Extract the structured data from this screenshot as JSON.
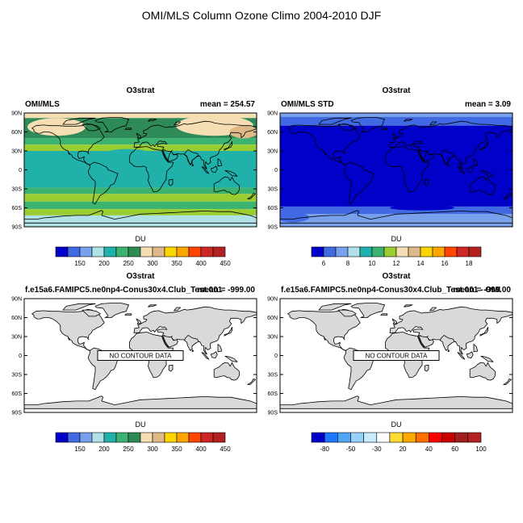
{
  "figure": {
    "title": "OMI/MLS Column Ozone Climo 2004-2010 DJF"
  },
  "land_color": "#d9d9d9",
  "chart_data": [
    {
      "type": "heatmap",
      "variable": "O3strat",
      "left_label": "OMI/MLS",
      "right_label": "mean = 254.57",
      "lat_ticks": [
        "90N",
        "60N",
        "30N",
        "0",
        "30S",
        "60S",
        "90S"
      ],
      "lat_values": [
        90,
        60,
        30,
        0,
        -30,
        -60,
        -90
      ],
      "colorbar": {
        "label": "DU",
        "colors": [
          "#0000c8",
          "#4169e1",
          "#78a0eb",
          "#afe1e6",
          "#20b2aa",
          "#3cb371",
          "#2e8b57",
          "#f5deb3",
          "#deb887",
          "#ffd700",
          "#ffa500",
          "#ff4500",
          "#cd2626",
          "#b22222"
        ],
        "tick_labels": [
          "150",
          "200",
          "250",
          "300",
          "350",
          "400",
          "450"
        ],
        "tick_edges": [
          2,
          4,
          6,
          8,
          10,
          12,
          14
        ]
      },
      "bands": [
        {
          "lat_top": 90,
          "lat_bottom": 82,
          "color": "#f5deb3"
        },
        {
          "lat_top": 82,
          "lat_bottom": 50,
          "color": "#2e8b57"
        },
        {
          "lat_top": 50,
          "lat_bottom": 40,
          "color": "#3cb371"
        },
        {
          "lat_top": 40,
          "lat_bottom": 30,
          "color": "#9acd32"
        },
        {
          "lat_top": 30,
          "lat_bottom": -28,
          "color": "#20b2aa"
        },
        {
          "lat_top": -28,
          "lat_bottom": -38,
          "color": "#3cb371"
        },
        {
          "lat_top": -38,
          "lat_bottom": -50,
          "color": "#9acd32"
        },
        {
          "lat_top": -50,
          "lat_bottom": -62,
          "color": "#3cb371"
        },
        {
          "lat_top": -62,
          "lat_bottom": -72,
          "color": "#9acd32"
        },
        {
          "lat_top": -72,
          "lat_bottom": -90,
          "color": "#afe1e6"
        }
      ],
      "patches": [
        {
          "lon": -130,
          "lat": 68,
          "rx": 45,
          "ry": 14,
          "color": "#f5deb3"
        },
        {
          "lon": 115,
          "lat": 70,
          "rx": 60,
          "ry": 16,
          "color": "#f5deb3"
        },
        {
          "lon": 160,
          "lat": 60,
          "rx": 22,
          "ry": 10,
          "color": "#deb887"
        },
        {
          "lon": -20,
          "lat": 28,
          "rx": 30,
          "ry": 5,
          "color": "#20b2aa"
        }
      ],
      "no_data": false
    },
    {
      "type": "heatmap",
      "variable": "O3strat",
      "left_label": "OMI/MLS STD",
      "right_label": "mean =   3.09",
      "lat_ticks": [
        "90N",
        "60N",
        "30N",
        "0",
        "30S",
        "60S",
        "90S"
      ],
      "lat_values": [
        90,
        60,
        30,
        0,
        -30,
        -60,
        -90
      ],
      "colorbar": {
        "label": "DU",
        "colors": [
          "#0000c8",
          "#4169e1",
          "#78a0eb",
          "#afe1e6",
          "#20b2aa",
          "#3cb371",
          "#9acd32",
          "#f5deb3",
          "#deb887",
          "#ffd700",
          "#ffa500",
          "#ff4500",
          "#cd2626",
          "#b22222"
        ],
        "tick_labels": [
          "6",
          "8",
          "10",
          "12",
          "14",
          "16",
          "18"
        ],
        "tick_edges": [
          1,
          3,
          5,
          7,
          9,
          11,
          13
        ]
      },
      "bands": [
        {
          "lat_top": 90,
          "lat_bottom": 84,
          "color": "#78a0eb"
        },
        {
          "lat_top": 84,
          "lat_bottom": 70,
          "color": "#4169e1"
        },
        {
          "lat_top": 70,
          "lat_bottom": -58,
          "color": "#0000c8"
        },
        {
          "lat_top": -58,
          "lat_bottom": -70,
          "color": "#4169e1"
        },
        {
          "lat_top": -70,
          "lat_bottom": -90,
          "color": "#78a0eb"
        }
      ],
      "patches": [
        {
          "lon": 60,
          "lat": 62,
          "rx": 55,
          "ry": 5,
          "color": "#0000c8"
        },
        {
          "lon": -160,
          "lat": -75,
          "rx": 25,
          "ry": 8,
          "color": "#4169e1"
        },
        {
          "lon": 40,
          "lat": -60,
          "rx": 50,
          "ry": 4,
          "color": "#0000c8"
        }
      ],
      "no_data": false
    },
    {
      "type": "heatmap",
      "variable": "O3strat",
      "left_label": "f.e15a6.FAMIPC5.ne0np4-Conus30x4.Club_Test.001",
      "right_label": "mean = -999.00",
      "lat_ticks": [
        "90N",
        "60N",
        "30N",
        "0",
        "30S",
        "60S",
        "90S"
      ],
      "lat_values": [
        90,
        60,
        30,
        0,
        -30,
        -60,
        -90
      ],
      "colorbar": {
        "label": "DU",
        "colors": [
          "#0000c8",
          "#4169e1",
          "#78a0eb",
          "#afe1e6",
          "#20b2aa",
          "#3cb371",
          "#2e8b57",
          "#f5deb3",
          "#deb887",
          "#ffd700",
          "#ffa500",
          "#ff4500",
          "#cd2626",
          "#b22222"
        ],
        "tick_labels": [
          "150",
          "200",
          "250",
          "300",
          "350",
          "400",
          "450"
        ],
        "tick_edges": [
          2,
          4,
          6,
          8,
          10,
          12,
          14
        ]
      },
      "bands": [],
      "patches": [],
      "no_data": true,
      "no_data_label": "NO CONTOUR DATA"
    },
    {
      "type": "heatmap",
      "variable": "O3strat",
      "left_label": "f.e15a6.FAMIPC5.ne0np4-Conus30x4.Club_Test.001 - OMI",
      "right_label": "mean = -999.00",
      "lat_ticks": [
        "90N",
        "60N",
        "30N",
        "0",
        "30S",
        "60S",
        "90S"
      ],
      "lat_values": [
        90,
        60,
        30,
        0,
        -30,
        -60,
        -90
      ],
      "colorbar": {
        "label": "DU",
        "colors": [
          "#0000c8",
          "#1e78ff",
          "#50a5f5",
          "#96d2fa",
          "#c8ebff",
          "#ffffff",
          "#ffdc32",
          "#ffaa00",
          "#ff6e00",
          "#ff0000",
          "#c80000",
          "#a01e1e",
          "#b22222"
        ],
        "tick_labels": [
          "-80",
          "-50",
          "-30",
          "20",
          "40",
          "60",
          "100"
        ],
        "tick_edges": [
          1,
          3,
          5,
          7,
          9,
          11,
          13
        ]
      },
      "bands": [],
      "patches": [],
      "no_data": true,
      "no_data_label": "NO CONTOUR DATA"
    }
  ]
}
